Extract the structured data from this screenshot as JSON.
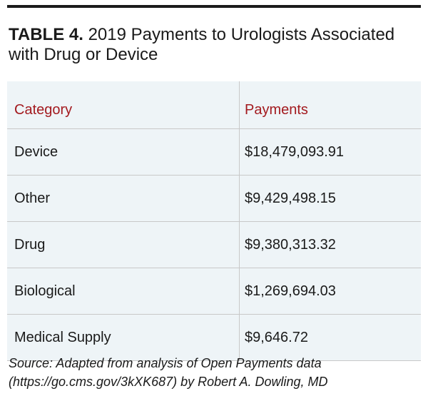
{
  "title": {
    "label": "TABLE 4.",
    "text": "2019 Payments to Urologists Associated with Drug or Device"
  },
  "table": {
    "headers": [
      "Category",
      "Payments"
    ],
    "rows": [
      [
        "Device",
        "$18,479,093.91"
      ],
      [
        "Other",
        "$9,429,498.15"
      ],
      [
        "Drug",
        "$9,380,313.32"
      ],
      [
        "Biological",
        "$1,269,694.03"
      ],
      [
        "Medical Supply",
        "$9,646.72"
      ]
    ]
  },
  "source": "Source: Adapted from analysis of Open Payments data (https://go.cms.gov/3kXK687) by Robert A. Dowling, MD",
  "colors": {
    "header_text": "#a31a1f",
    "table_bg": "#eef4f7",
    "rule": "#1a1a1a"
  }
}
